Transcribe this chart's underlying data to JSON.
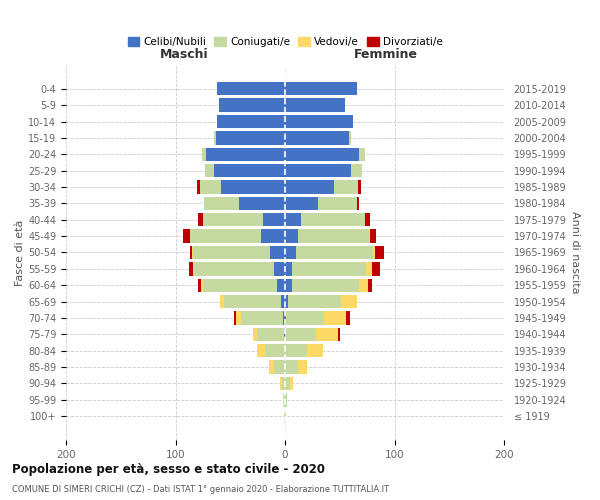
{
  "age_groups": [
    "0-4",
    "5-9",
    "10-14",
    "15-19",
    "20-24",
    "25-29",
    "30-34",
    "35-39",
    "40-44",
    "45-49",
    "50-54",
    "55-59",
    "60-64",
    "65-69",
    "70-74",
    "75-79",
    "80-84",
    "85-89",
    "90-94",
    "95-99",
    "100+"
  ],
  "birth_years": [
    "2015-2019",
    "2010-2014",
    "2005-2009",
    "2000-2004",
    "1995-1999",
    "1990-1994",
    "1985-1989",
    "1980-1984",
    "1975-1979",
    "1970-1974",
    "1965-1969",
    "1960-1964",
    "1955-1959",
    "1950-1954",
    "1945-1949",
    "1940-1944",
    "1935-1939",
    "1930-1934",
    "1925-1929",
    "1920-1924",
    "≤ 1919"
  ],
  "male_celibi": [
    62,
    60,
    62,
    63,
    72,
    65,
    58,
    42,
    20,
    22,
    14,
    10,
    7,
    4,
    2,
    1,
    0,
    0,
    0,
    0,
    0
  ],
  "male_coniugati": [
    0,
    0,
    0,
    2,
    4,
    8,
    20,
    32,
    55,
    65,
    70,
    73,
    68,
    52,
    38,
    25,
    18,
    10,
    3,
    1,
    1
  ],
  "male_vedovi": [
    0,
    0,
    0,
    0,
    0,
    0,
    0,
    0,
    0,
    0,
    1,
    1,
    2,
    3,
    5,
    3,
    8,
    5,
    2,
    1,
    0
  ],
  "male_divorziati": [
    0,
    0,
    0,
    0,
    0,
    0,
    2,
    0,
    4,
    6,
    2,
    4,
    2,
    0,
    2,
    0,
    0,
    0,
    0,
    0,
    0
  ],
  "female_nubili": [
    66,
    55,
    62,
    58,
    68,
    60,
    45,
    30,
    15,
    12,
    10,
    6,
    6,
    3,
    1,
    0,
    0,
    0,
    0,
    0,
    0
  ],
  "female_coniugate": [
    0,
    0,
    0,
    2,
    5,
    10,
    22,
    36,
    58,
    65,
    70,
    68,
    62,
    48,
    35,
    28,
    20,
    12,
    5,
    2,
    1
  ],
  "female_vedove": [
    0,
    0,
    0,
    0,
    0,
    0,
    0,
    0,
    0,
    1,
    2,
    5,
    8,
    15,
    20,
    20,
    15,
    8,
    2,
    0,
    0
  ],
  "female_divorziate": [
    0,
    0,
    0,
    0,
    0,
    0,
    2,
    2,
    5,
    5,
    8,
    8,
    3,
    0,
    3,
    2,
    0,
    0,
    0,
    0,
    0
  ],
  "colors": {
    "celibi": "#4472c4",
    "coniugati": "#c5d9a0",
    "vedovi": "#ffd966",
    "divorziati": "#c00000"
  },
  "xlim": 200,
  "title": "Popolazione per età, sesso e stato civile - 2020",
  "subtitle": "COMUNE DI SIMERI CRICHI (CZ) - Dati ISTAT 1° gennaio 2020 - Elaborazione TUTTITALIA.IT",
  "ylabel": "Fasce di età",
  "ylabel_right": "Anni di nascita",
  "xlabel_left": "Maschi",
  "xlabel_right": "Femmine",
  "bg_color": "#ffffff",
  "grid_color": "#cccccc"
}
